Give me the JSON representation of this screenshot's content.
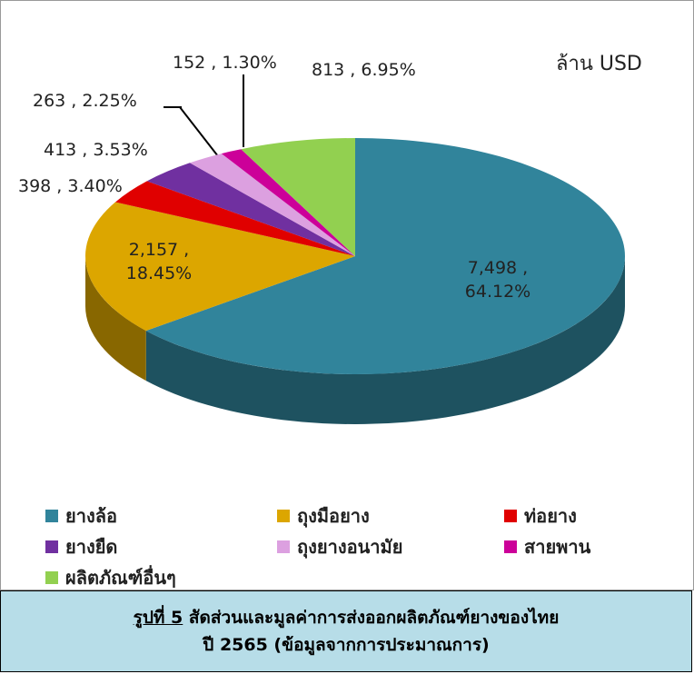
{
  "chart_data": {
    "type": "pie",
    "unit_label": "ล้าน USD",
    "categories": [
      "ยางล้อ",
      "ถุงมือยาง",
      "ท่อยาง",
      "ยางยืด",
      "ถุงยางอนามัย",
      "สายพาน",
      "ผลิตภัณฑ์อื่นๆ"
    ],
    "values": [
      7498,
      2157,
      398,
      413,
      263,
      152,
      813
    ],
    "value_labels": [
      "7,498 , 64.12%",
      "2,157 , 18.45%",
      "398 , 3.40%",
      "413 , 3.53%",
      "263 , 2.25%",
      "152 , 1.30%",
      "813 , 6.95%"
    ],
    "colors": [
      "#31849b",
      "#dca600",
      "#e00000",
      "#7030a0",
      "#dca0e0",
      "#cc0099",
      "#92d050"
    ],
    "legend": "bottom"
  },
  "caption": {
    "figure": "รูปที่ 5",
    "text": "สัดส่วนและมูลค่าการส่งออกผลิตภัณฑ์ยางของไทย",
    "line2": "ปี 2565 (ข้อมูลจากการประมาณการ)"
  }
}
